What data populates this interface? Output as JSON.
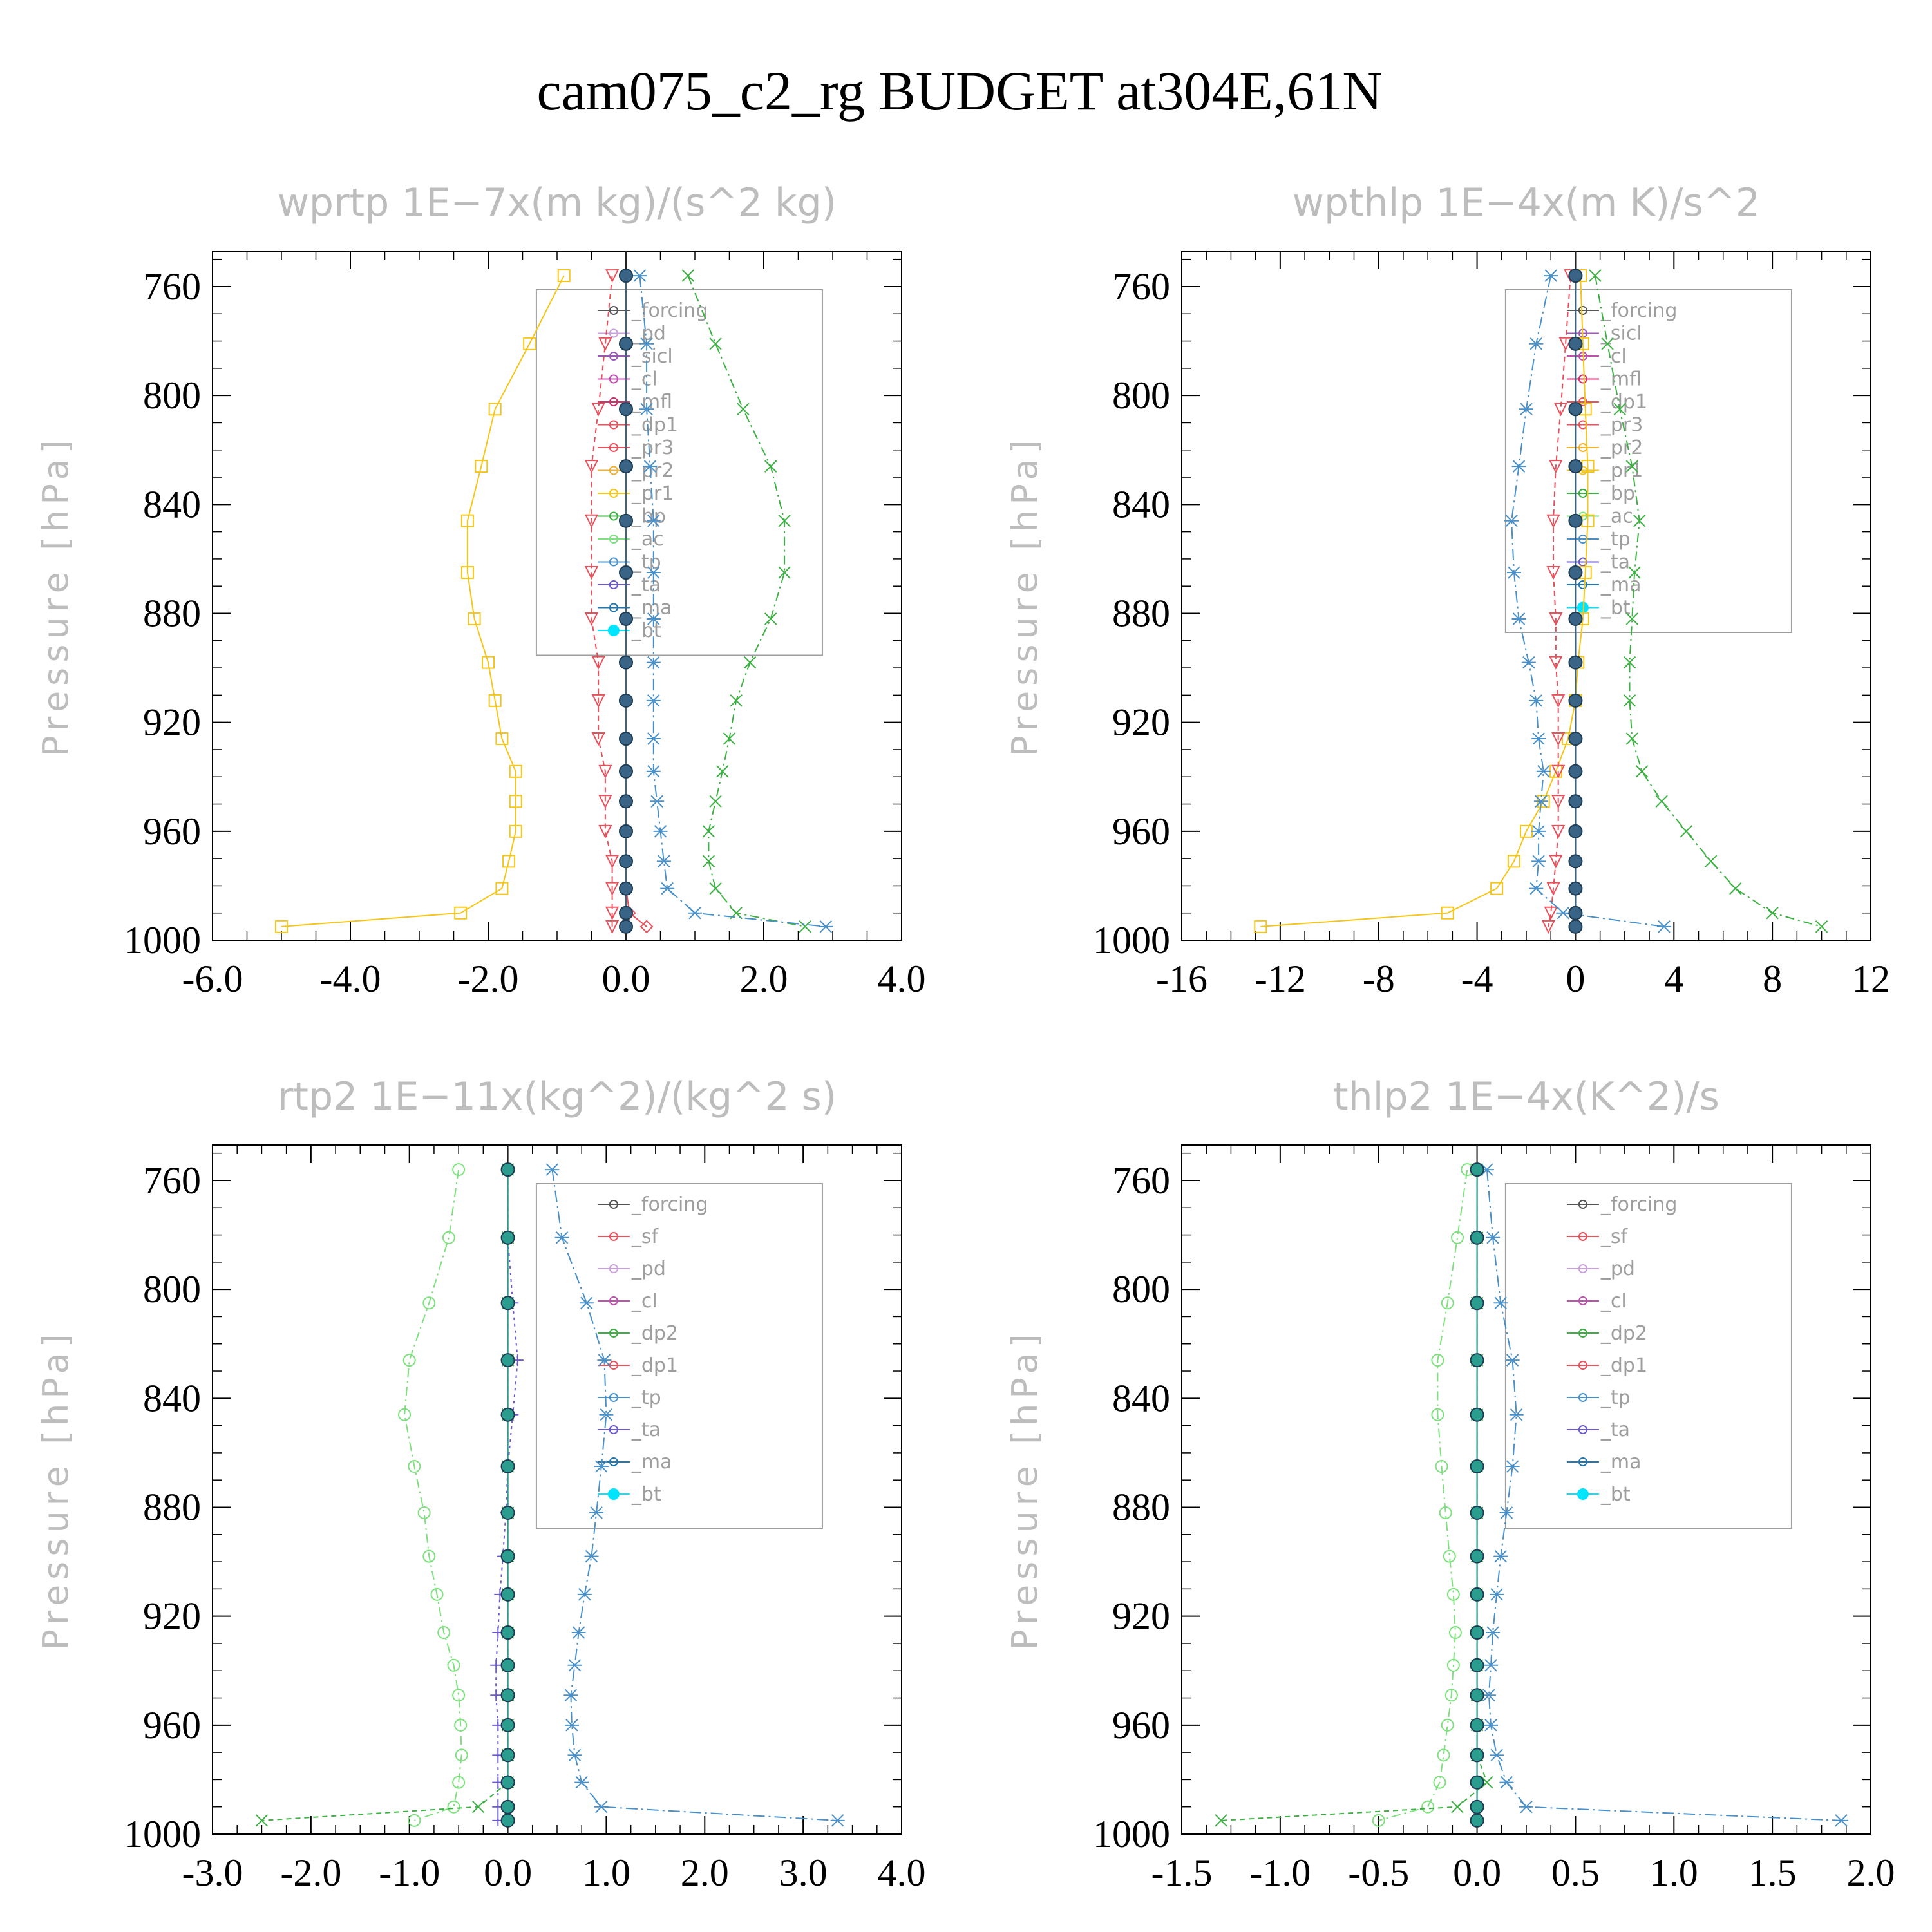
{
  "figure": {
    "title": "cam075_c2_rg  BUDGET at304E,61N"
  },
  "chart_data": [
    {
      "type": "line",
      "title": "wprtp   1E−7x(m kg)/(s^2 kg)",
      "ylabel": "Pressure [hPa]",
      "xlim": [
        -6,
        4
      ],
      "ylim": [
        1000,
        747
      ],
      "xticks": [
        -6,
        -4,
        -2,
        0,
        2,
        4
      ],
      "xtick_labels": [
        "-6.0",
        "-4.0",
        "-2.0",
        "0.0",
        "2.0",
        "4.0"
      ],
      "yticks": [
        760,
        800,
        840,
        880,
        920,
        960,
        1000
      ],
      "ytick_labels": [
        "760",
        "800",
        "840",
        "880",
        "920",
        "960",
        "1000"
      ],
      "legend": "top-right",
      "legend_entries": [
        "_forcing",
        "_pd",
        "_sicl",
        "_cl",
        "_mfl",
        "_dp1",
        "_pr3",
        "_pr2",
        "_pr1",
        "_bp",
        "_ac",
        "_tp",
        "_ta",
        "_ma",
        "_bt"
      ],
      "y": [
        756,
        781,
        805,
        826,
        846,
        865,
        882,
        898,
        912,
        926,
        938,
        949,
        960,
        971,
        981,
        990,
        995
      ],
      "series": [
        {
          "name": "_pr1",
          "color": "#f5c518",
          "marker": "square",
          "dash": "",
          "values": [
            -0.9,
            -1.4,
            -1.9,
            -2.1,
            -2.3,
            -2.3,
            -2.2,
            -2.0,
            -1.9,
            -1.8,
            -1.6,
            -1.6,
            -1.6,
            -1.7,
            -1.8,
            -2.4,
            -5.0
          ]
        },
        {
          "name": "_pr3",
          "color": "#e8505b",
          "marker": "tri-down",
          "dash": "8,6",
          "values": [
            -0.2,
            -0.3,
            -0.4,
            -0.5,
            -0.5,
            -0.5,
            -0.5,
            -0.4,
            -0.4,
            -0.4,
            -0.3,
            -0.3,
            -0.3,
            -0.2,
            -0.2,
            -0.2,
            -0.2
          ]
        },
        {
          "name": "_dp1",
          "color": "#e8505b",
          "marker": "diamond",
          "dash": "",
          "values": [
            0.0,
            0.0,
            0.0,
            0.0,
            0.0,
            0.0,
            0.0,
            0.0,
            0.0,
            0.0,
            0.0,
            0.0,
            0.0,
            0.0,
            0.0,
            0.05,
            0.3
          ]
        },
        {
          "name": "_bp",
          "color": "#3cb043",
          "marker": "x",
          "dash": "14,6,3,6",
          "values": [
            0.9,
            1.3,
            1.7,
            2.1,
            2.3,
            2.3,
            2.1,
            1.8,
            1.6,
            1.5,
            1.4,
            1.3,
            1.2,
            1.2,
            1.3,
            1.6,
            2.6
          ]
        },
        {
          "name": "_tp",
          "color": "#4a90c8",
          "marker": "star",
          "dash": "18,6,3,6",
          "values": [
            0.2,
            0.3,
            0.3,
            0.35,
            0.4,
            0.4,
            0.4,
            0.4,
            0.4,
            0.4,
            0.4,
            0.45,
            0.5,
            0.55,
            0.6,
            1.0,
            2.9
          ]
        },
        {
          "name": "_bt",
          "color": "#3a6486",
          "marker": "filled-circle",
          "dash": "",
          "values": [
            0,
            0,
            0,
            0,
            0,
            0,
            0,
            0,
            0,
            0,
            0,
            0,
            0,
            0,
            0,
            0,
            0
          ]
        }
      ]
    },
    {
      "type": "line",
      "title": "wpthlp   1E−4x(m K)/s^2",
      "ylabel": "Pressure [hPa]",
      "xlim": [
        -16,
        12
      ],
      "ylim": [
        1000,
        747
      ],
      "xticks": [
        -16,
        -12,
        -8,
        -4,
        0,
        4,
        8,
        12
      ],
      "xtick_labels": [
        "-16",
        "-12",
        "-8",
        "-4",
        "0",
        "4",
        "8",
        "12"
      ],
      "yticks": [
        760,
        800,
        840,
        880,
        920,
        960,
        1000
      ],
      "ytick_labels": [
        "760",
        "800",
        "840",
        "880",
        "920",
        "960",
        "1000"
      ],
      "legend": "top-right",
      "legend_entries": [
        "_forcing",
        "_sicl",
        "_cl",
        "_mfl",
        "_dp1",
        "_pr3",
        "_pr2",
        "_pr1",
        "_bp",
        "_ac",
        "_tp",
        "_ta",
        "_ma",
        "_bt"
      ],
      "y": [
        756,
        781,
        805,
        826,
        846,
        865,
        882,
        898,
        912,
        926,
        938,
        949,
        960,
        971,
        981,
        990,
        995
      ],
      "series": [
        {
          "name": "_pr1",
          "color": "#f5c518",
          "marker": "square",
          "dash": "",
          "values": [
            0.2,
            0.3,
            0.4,
            0.5,
            0.5,
            0.4,
            0.3,
            0.1,
            0.0,
            -0.3,
            -0.8,
            -1.3,
            -2.0,
            -2.5,
            -3.2,
            -5.2,
            -12.8
          ]
        },
        {
          "name": "_pr3",
          "color": "#e8505b",
          "marker": "tri-down",
          "dash": "8,6",
          "values": [
            -0.2,
            -0.4,
            -0.6,
            -0.8,
            -0.9,
            -0.9,
            -0.8,
            -0.8,
            -0.7,
            -0.7,
            -0.7,
            -0.7,
            -0.7,
            -0.8,
            -0.9,
            -1.0,
            -1.1
          ]
        },
        {
          "name": "_bp",
          "color": "#3cb043",
          "marker": "x",
          "dash": "14,6,3,6",
          "values": [
            0.8,
            1.3,
            1.8,
            2.3,
            2.6,
            2.4,
            2.3,
            2.2,
            2.2,
            2.3,
            2.7,
            3.5,
            4.5,
            5.5,
            6.5,
            8.0,
            10.0
          ]
        },
        {
          "name": "_tp",
          "color": "#4a90c8",
          "marker": "star",
          "dash": "18,6,3,6",
          "values": [
            -1.0,
            -1.6,
            -2.0,
            -2.3,
            -2.6,
            -2.5,
            -2.3,
            -1.9,
            -1.6,
            -1.5,
            -1.3,
            -1.4,
            -1.5,
            -1.5,
            -1.6,
            -0.5,
            3.6
          ]
        },
        {
          "name": "_bt",
          "color": "#3a6486",
          "marker": "filled-circle",
          "dash": "",
          "values": [
            0,
            0,
            0,
            0,
            0,
            0,
            0,
            0,
            0,
            0,
            0,
            0,
            0,
            0,
            0,
            0,
            0
          ]
        }
      ]
    },
    {
      "type": "line",
      "title": "rtp2   1E−11x(kg^2)/(kg^2 s)",
      "ylabel": "Pressure [hPa]",
      "xlim": [
        -3,
        4
      ],
      "ylim": [
        1000,
        747
      ],
      "xticks": [
        -3,
        -2,
        -1,
        0,
        1,
        2,
        3,
        4
      ],
      "xtick_labels": [
        "-3.0",
        "-2.0",
        "-1.0",
        "0.0",
        "1.0",
        "2.0",
        "3.0",
        "4.0"
      ],
      "yticks": [
        760,
        800,
        840,
        880,
        920,
        960,
        1000
      ],
      "ytick_labels": [
        "760",
        "800",
        "840",
        "880",
        "920",
        "960",
        "1000"
      ],
      "legend": "top-right",
      "legend_entries": [
        "_forcing",
        "_sf",
        "_pd",
        "_cl",
        "_dp2",
        "_dp1",
        "_tp",
        "_ta",
        "_ma",
        "_bt"
      ],
      "y": [
        756,
        781,
        805,
        826,
        846,
        865,
        882,
        898,
        912,
        926,
        938,
        949,
        960,
        971,
        981,
        990,
        995
      ],
      "series": [
        {
          "name": "_dp1",
          "color": "#7ee07e",
          "marker": "circle",
          "dash": "14,6,3,6",
          "values": [
            -0.5,
            -0.6,
            -0.8,
            -1.0,
            -1.05,
            -0.95,
            -0.85,
            -0.8,
            -0.72,
            -0.65,
            -0.55,
            -0.5,
            -0.48,
            -0.47,
            -0.5,
            -0.55,
            -0.95
          ]
        },
        {
          "name": "_dp2",
          "color": "#3cb043",
          "marker": "x",
          "dash": "8,6",
          "values": [
            0,
            0,
            0,
            0,
            0,
            0,
            0,
            0,
            0,
            0,
            0,
            0,
            0,
            0,
            0,
            -0.3,
            -2.5
          ]
        },
        {
          "name": "_ta",
          "color": "#6a5acd",
          "marker": "plus",
          "dash": "4,6",
          "values": [
            0,
            0,
            0.05,
            0.1,
            0.05,
            0.0,
            -0.02,
            -0.05,
            -0.08,
            -0.1,
            -0.12,
            -0.12,
            -0.1,
            -0.1,
            -0.1,
            -0.1,
            -0.1
          ]
        },
        {
          "name": "_tp",
          "color": "#4a90c8",
          "marker": "star",
          "dash": "18,6,3,6",
          "values": [
            0.45,
            0.55,
            0.8,
            0.98,
            1.0,
            0.95,
            0.9,
            0.85,
            0.78,
            0.72,
            0.68,
            0.64,
            0.65,
            0.68,
            0.75,
            0.95,
            3.35
          ]
        },
        {
          "name": "_bt",
          "color": "#2a9d8f",
          "marker": "filled-circle",
          "dash": "",
          "values": [
            0,
            0,
            0,
            0,
            0,
            0,
            0,
            0,
            0,
            0,
            0,
            0,
            0,
            0,
            0,
            0,
            0
          ]
        }
      ]
    },
    {
      "type": "line",
      "title": "thlp2   1E−4x(K^2)/s",
      "ylabel": "Pressure [hPa]",
      "xlim": [
        -1.5,
        2.0
      ],
      "ylim": [
        1000,
        747
      ],
      "xticks": [
        -1.5,
        -1.0,
        -0.5,
        0,
        0.5,
        1.0,
        1.5,
        2.0
      ],
      "xtick_labels": [
        "-1.5",
        "-1.0",
        "-0.5",
        "0.0",
        "0.5",
        "1.0",
        "1.5",
        "2.0"
      ],
      "yticks": [
        760,
        800,
        840,
        880,
        920,
        960,
        1000
      ],
      "ytick_labels": [
        "760",
        "800",
        "840",
        "880",
        "920",
        "960",
        "1000"
      ],
      "legend": "top-right",
      "legend_entries": [
        "_forcing",
        "_sf",
        "_pd",
        "_cl",
        "_dp2",
        "_dp1",
        "_tp",
        "_ta",
        "_ma",
        "_bt"
      ],
      "y": [
        756,
        781,
        805,
        826,
        846,
        865,
        882,
        898,
        912,
        926,
        938,
        949,
        960,
        971,
        981,
        990,
        995
      ],
      "series": [
        {
          "name": "_dp1",
          "color": "#7ee07e",
          "marker": "circle",
          "dash": "14,6,3,6",
          "values": [
            -0.05,
            -0.1,
            -0.15,
            -0.2,
            -0.2,
            -0.18,
            -0.16,
            -0.14,
            -0.12,
            -0.11,
            -0.12,
            -0.13,
            -0.15,
            -0.17,
            -0.19,
            -0.25,
            -0.5
          ]
        },
        {
          "name": "_dp2",
          "color": "#3cb043",
          "marker": "x",
          "dash": "8,6",
          "values": [
            0,
            0,
            0,
            0,
            0,
            0,
            0,
            0,
            0,
            0,
            0,
            0,
            0,
            0,
            0.05,
            -0.1,
            -1.3
          ]
        },
        {
          "name": "_tp",
          "color": "#4a90c8",
          "marker": "star",
          "dash": "18,6,3,6",
          "values": [
            0.05,
            0.08,
            0.12,
            0.18,
            0.2,
            0.18,
            0.15,
            0.12,
            0.1,
            0.08,
            0.07,
            0.06,
            0.07,
            0.1,
            0.15,
            0.25,
            1.85
          ]
        },
        {
          "name": "_bt",
          "color": "#2a9d8f",
          "marker": "filled-circle",
          "dash": "",
          "values": [
            0,
            0,
            0,
            0,
            0,
            0,
            0,
            0,
            0,
            0,
            0,
            0,
            0,
            0,
            0,
            0,
            0
          ]
        }
      ]
    }
  ]
}
